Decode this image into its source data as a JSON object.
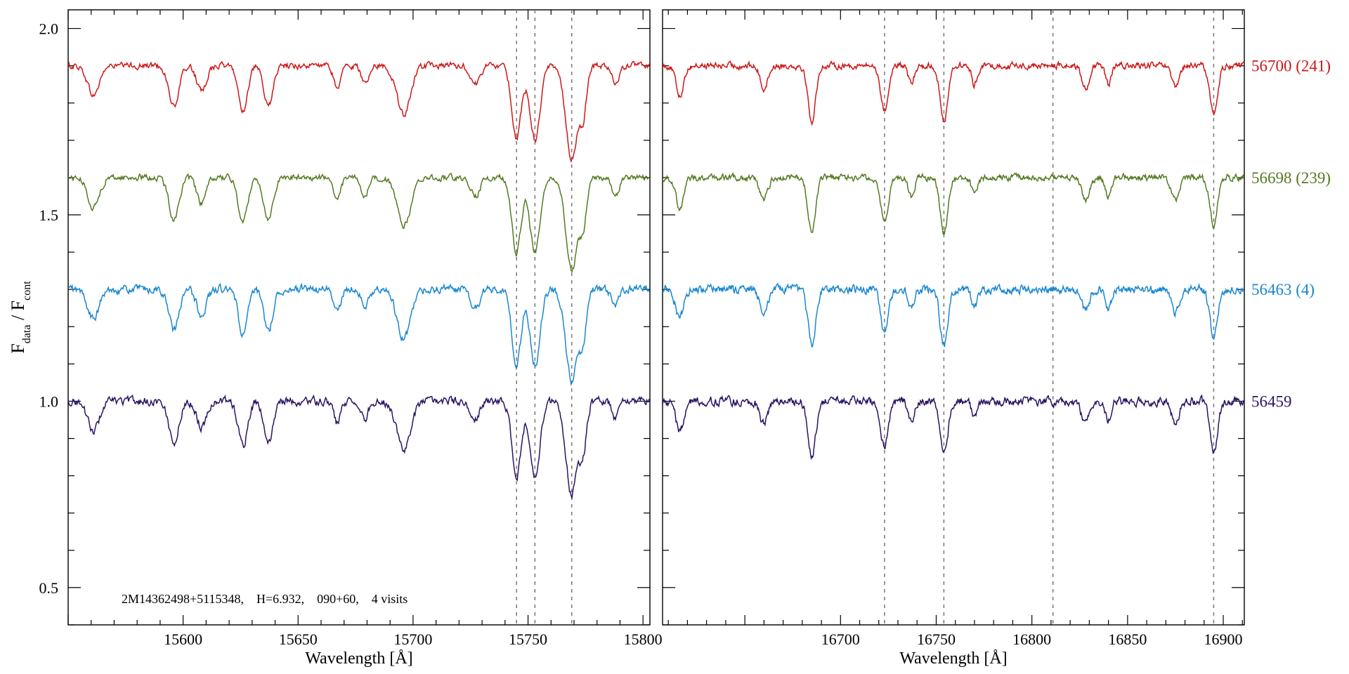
{
  "chart_data": {
    "type": "line",
    "y_axis": {
      "label_main": "F",
      "label_sub_num": "data",
      "label_sep": " / F",
      "label_sub_den": "cont",
      "ylim": [
        0.4,
        2.05
      ],
      "ticks": [
        0.5,
        1.0,
        1.5,
        2.0
      ],
      "tick_labels": [
        "0.5",
        "1.0",
        "1.5",
        "2.0"
      ],
      "minor_step": 0.1
    },
    "panels": [
      {
        "id": "left",
        "xlabel": "Wavelength [Å]",
        "xlim": [
          15550,
          15803
        ],
        "ticks": [
          15600,
          15650,
          15700,
          15750,
          15800
        ],
        "tick_labels": [
          "15600",
          "15650",
          "15700",
          "15750",
          "15800"
        ],
        "minor_step": 10,
        "dashed_lines": [
          15745,
          15753,
          15769
        ],
        "annotation": "2M14362498+5115348,    H=6.932,    090+60,    4 visits",
        "features": [
          [
            15561,
            0.08,
            2.5
          ],
          [
            15596,
            0.11,
            2.2
          ],
          [
            15608,
            0.07,
            2.0
          ],
          [
            15626,
            0.12,
            2.0
          ],
          [
            15637,
            0.11,
            2.0
          ],
          [
            15667,
            0.06,
            1.5
          ],
          [
            15679,
            0.05,
            1.5
          ],
          [
            15696,
            0.13,
            3.0
          ],
          [
            15727,
            0.05,
            2.0
          ],
          [
            15745,
            0.2,
            2.0
          ],
          [
            15753,
            0.2,
            2.2
          ],
          [
            15769,
            0.25,
            2.5
          ],
          [
            15774,
            0.12,
            1.5
          ],
          [
            15788,
            0.05,
            1.5
          ]
        ]
      },
      {
        "id": "right",
        "xlabel": "Wavelength [Å]",
        "xlim": [
          16607,
          16911
        ],
        "ticks": [
          16650,
          16700,
          16750,
          16800,
          16850,
          16900
        ],
        "tick_labels": [
          "",
          "16700",
          "16750",
          "16800",
          "16850",
          "16900"
        ],
        "minor_step": 10,
        "dashed_lines": [
          16723,
          16754,
          16811,
          16895
        ],
        "features": [
          [
            16616,
            0.08,
            2.0
          ],
          [
            16660,
            0.06,
            2.0
          ],
          [
            16685,
            0.15,
            2.0
          ],
          [
            16723,
            0.12,
            2.0
          ],
          [
            16737,
            0.05,
            1.5
          ],
          [
            16754,
            0.15,
            2.0
          ],
          [
            16770,
            0.05,
            1.5
          ],
          [
            16828,
            0.06,
            2.0
          ],
          [
            16840,
            0.05,
            1.5
          ],
          [
            16875,
            0.06,
            2.0
          ],
          [
            16895,
            0.13,
            2.0
          ]
        ]
      }
    ],
    "series": [
      {
        "name": "56700 (241)",
        "offset": 0.9,
        "noise": 0.015,
        "color": "#cc1818"
      },
      {
        "name": "56698 (239)",
        "offset": 0.6,
        "noise": 0.015,
        "color": "#557a22"
      },
      {
        "name": "56463 (4)",
        "offset": 0.3,
        "noise": 0.02,
        "color": "#1a87d0"
      },
      {
        "name": "56459",
        "offset": 0.0,
        "noise": 0.02,
        "color": "#2b1362"
      }
    ]
  }
}
